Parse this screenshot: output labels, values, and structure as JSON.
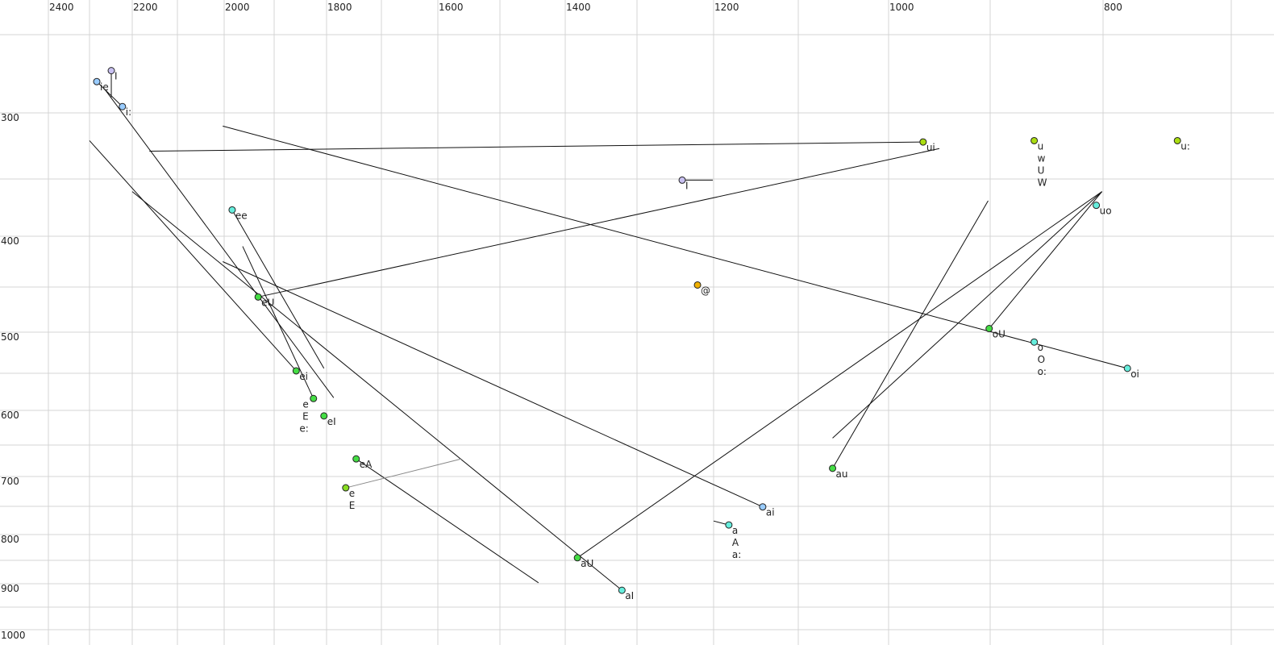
{
  "chart_data": {
    "type": "scatter",
    "title": "",
    "xlabel": "",
    "ylabel": "",
    "x_reversed": true,
    "y_reversed": true,
    "grid": true,
    "x_tick_labels": [
      "2400",
      "2200",
      "2000",
      "1800",
      "1600",
      "1400",
      "1200",
      "1000",
      "800"
    ],
    "y_tick_labels": [
      "300",
      "400",
      "500",
      "600",
      "700",
      "800",
      "900",
      "1000"
    ],
    "points": [
      {
        "x": 2283,
        "y": 280,
        "labels": [
          "ie"
        ],
        "color": "#99ccff"
      },
      {
        "x": 2249,
        "y": 273,
        "labels": [
          "I"
        ],
        "color": "#c8c0f0"
      },
      {
        "x": 2223,
        "y": 296,
        "labels": [
          "i:"
        ],
        "color": "#99ccff"
      },
      {
        "x": 1984,
        "y": 377,
        "labels": [
          "ee"
        ],
        "color": "#66eedd"
      },
      {
        "x": 1932,
        "y": 461,
        "labels": [
          "eU"
        ],
        "color": "#44dd44"
      },
      {
        "x": 1858,
        "y": 547,
        "labels": [
          "ei"
        ],
        "color": "#44dd44"
      },
      {
        "x": 1825,
        "y": 584,
        "labels": [
          "e",
          "E",
          "e:"
        ],
        "color": "#44dd44"
      },
      {
        "x": 1805,
        "y": 608,
        "labels": [
          "eI"
        ],
        "color": "#44dd44"
      },
      {
        "x": 1746,
        "y": 672,
        "labels": [
          "eA"
        ],
        "color": "#44dd44"
      },
      {
        "x": 1765,
        "y": 719,
        "labels": [
          "e",
          "E"
        ],
        "color": "#88dd22",
        "label_color": "#777799"
      },
      {
        "x": 966,
        "y": 322,
        "labels": [
          "ui"
        ],
        "color": "#aadd11"
      },
      {
        "x": 861,
        "y": 321,
        "labels": [
          "u",
          "w",
          "U",
          "W"
        ],
        "color": "#aadd11"
      },
      {
        "x": 742,
        "y": 321,
        "labels": [
          "u:"
        ],
        "color": "#aadd11"
      },
      {
        "x": 1241,
        "y": 351,
        "labels": [
          "I"
        ],
        "color": "#c8c0f0"
      },
      {
        "x": 1221,
        "y": 448,
        "labels": [
          "@"
        ],
        "color": "#f0b000"
      },
      {
        "x": 806,
        "y": 373,
        "labels": [
          "uo"
        ],
        "color": "#66eedd"
      },
      {
        "x": 901,
        "y": 496,
        "labels": [
          "oU"
        ],
        "color": "#44dd44"
      },
      {
        "x": 861,
        "y": 512,
        "labels": [
          "o",
          "O",
          "o:"
        ],
        "color": "#66eedd"
      },
      {
        "x": 781,
        "y": 544,
        "labels": [
          "oi"
        ],
        "color": "#66eedd"
      },
      {
        "x": 1062,
        "y": 687,
        "labels": [
          "au"
        ],
        "color": "#44dd44"
      },
      {
        "x": 1142,
        "y": 751,
        "labels": [
          "ai"
        ],
        "color": "#99ccff"
      },
      {
        "x": 1182,
        "y": 783,
        "labels": [
          "a",
          "A",
          "a:"
        ],
        "color": "#66eedd"
      },
      {
        "x": 1383,
        "y": 845,
        "labels": [
          "aU"
        ],
        "color": "#44dd44"
      },
      {
        "x": 1321,
        "y": 914,
        "labels": [
          "aI"
        ],
        "color": "#66eedd"
      }
    ],
    "trajectories": [
      {
        "from": [
          2162,
          329
        ],
        "to": [
          966,
          322
        ]
      },
      {
        "from": [
          2003,
          310
        ],
        "to": [
          781,
          544
        ]
      },
      {
        "from": [
          2300,
          321
        ],
        "to": [
          1858,
          547
        ]
      },
      {
        "from": [
          2200,
          361
        ],
        "to": [
          1321,
          914
        ]
      },
      {
        "from": [
          2264,
          285
        ],
        "to": [
          1787,
          583
        ]
      },
      {
        "from": [
          1963,
          410
        ],
        "to": [
          1825,
          584
        ]
      },
      {
        "from": [
          1984,
          377
        ],
        "to": [
          1805,
          544
        ]
      },
      {
        "from": [
          2003,
          425
        ],
        "to": [
          1142,
          751
        ]
      },
      {
        "from": [
          1932,
          461
        ],
        "to": [
          950,
          327
        ]
      },
      {
        "from": [
          1383,
          845
        ],
        "to": [
          801,
          361
        ]
      },
      {
        "from": [
          1062,
          640
        ],
        "to": [
          801,
          361
        ]
      },
      {
        "from": [
          1062,
          687
        ],
        "to": [
          902,
          369
        ]
      },
      {
        "from": [
          901,
          496
        ],
        "to": [
          801,
          361
        ]
      },
      {
        "from": [
          1746,
          672
        ],
        "to": [
          1441,
          898
        ]
      },
      {
        "from": [
          1765,
          719
        ],
        "to": [
          1562,
          672
        ],
        "color": "#888888"
      },
      {
        "from": [
          2249,
          273
        ],
        "to": [
          2249,
          290
        ]
      },
      {
        "from": [
          2283,
          280
        ],
        "to": [
          2223,
          296
        ]
      },
      {
        "from": [
          1241,
          351
        ],
        "to": [
          1201,
          351
        ]
      },
      {
        "from": [
          1200,
          776
        ],
        "to": [
          1182,
          783
        ]
      }
    ]
  }
}
